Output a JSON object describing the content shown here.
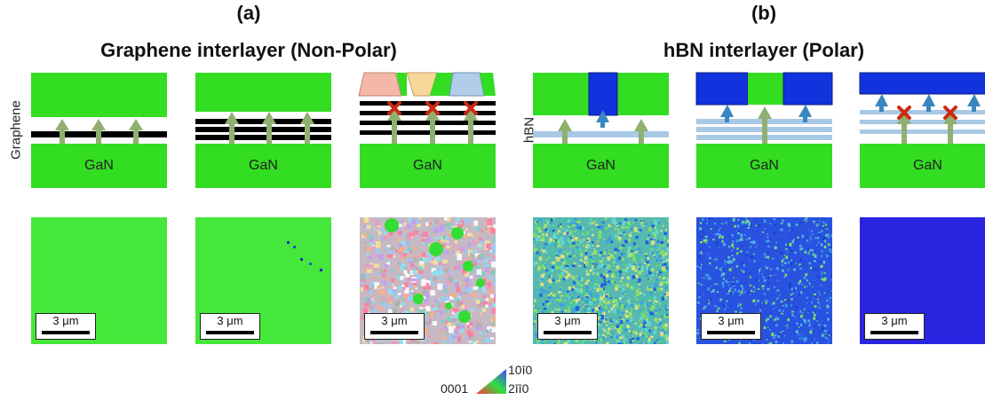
{
  "panels": {
    "a": {
      "letter": "(a)",
      "heading": "Graphene interlayer (Non-Polar)",
      "side_label": "Graphene",
      "substrate_label": "GaN",
      "scale_label": "3 μm"
    },
    "b": {
      "letter": "(b)",
      "heading": "hBN interlayer (Polar)",
      "side_label": "hBN",
      "substrate_label": "GaN",
      "scale_label": "3 μm"
    }
  },
  "legend": {
    "left_label": "0001",
    "top_label": "10ī0",
    "bottom_label": "2īī0"
  },
  "colors": {
    "gan_green": "#33dd22",
    "polar_blue": "#1133dd",
    "graphene_black": "#000000",
    "hbn_lightblue": "#a9c8e6",
    "arrow_green": "#8fb070",
    "arrow_blue": "#3a86c0",
    "cross_red": "#cc2a10"
  }
}
